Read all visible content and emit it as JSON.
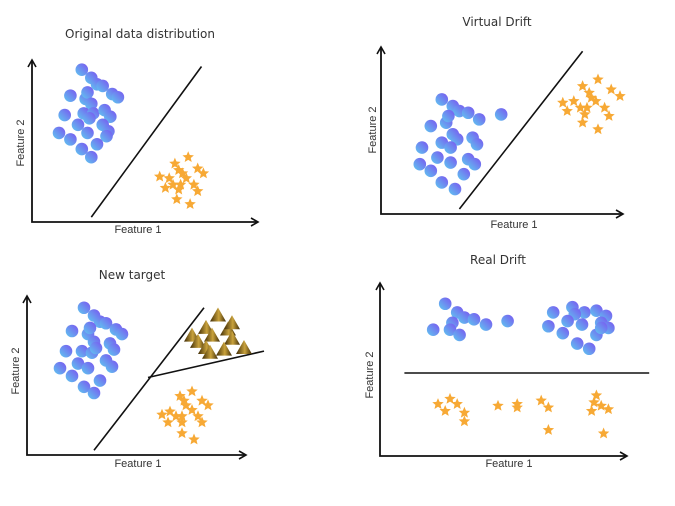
{
  "colors": {
    "circle_light": "#5fc8f0",
    "circle_dark": "#7a55f0",
    "star": "#f7a935",
    "triangle_light": "#c9a23c",
    "triangle_dark": "#3d2a06",
    "axis": "#111111"
  },
  "chart_data": [
    {
      "id": "original",
      "type": "scatter",
      "title": "Original data distribution",
      "xlabel": "Feature 1",
      "ylabel": "Feature 2",
      "xlim": [
        0,
        1
      ],
      "ylim": [
        0,
        1
      ],
      "grid": false,
      "boundaries": [
        {
          "name": "decision-boundary",
          "points": [
            [
              0.27,
              0.03
            ],
            [
              0.85,
              0.96
            ]
          ]
        }
      ],
      "series": [
        {
          "name": "class-circles",
          "marker": "circle",
          "points": [
            [
              0.22,
              0.94
            ],
            [
              0.27,
              0.89
            ],
            [
              0.3,
              0.85
            ],
            [
              0.33,
              0.84
            ],
            [
              0.38,
              0.79
            ],
            [
              0.41,
              0.77
            ],
            [
              0.16,
              0.78
            ],
            [
              0.24,
              0.76
            ],
            [
              0.25,
              0.8
            ],
            [
              0.27,
              0.73
            ],
            [
              0.23,
              0.67
            ],
            [
              0.28,
              0.67
            ],
            [
              0.26,
              0.64
            ],
            [
              0.34,
              0.69
            ],
            [
              0.37,
              0.65
            ],
            [
              0.13,
              0.66
            ],
            [
              0.2,
              0.6
            ],
            [
              0.25,
              0.55
            ],
            [
              0.33,
              0.6
            ],
            [
              0.36,
              0.56
            ],
            [
              0.1,
              0.55
            ],
            [
              0.16,
              0.51
            ],
            [
              0.35,
              0.53
            ],
            [
              0.3,
              0.48
            ],
            [
              0.22,
              0.45
            ],
            [
              0.27,
              0.4
            ]
          ]
        },
        {
          "name": "class-stars",
          "marker": "star",
          "points": [
            [
              0.78,
              0.4
            ],
            [
              0.71,
              0.36
            ],
            [
              0.83,
              0.33
            ],
            [
              0.73,
              0.32
            ],
            [
              0.75,
              0.3
            ],
            [
              0.86,
              0.3
            ],
            [
              0.63,
              0.28
            ],
            [
              0.68,
              0.27
            ],
            [
              0.77,
              0.27
            ],
            [
              0.7,
              0.23
            ],
            [
              0.74,
              0.23
            ],
            [
              0.81,
              0.23
            ],
            [
              0.66,
              0.21
            ],
            [
              0.73,
              0.2
            ],
            [
              0.83,
              0.19
            ],
            [
              0.72,
              0.14
            ],
            [
              0.79,
              0.11
            ]
          ]
        }
      ]
    },
    {
      "id": "virtual",
      "type": "scatter",
      "title": "Virtual Drift",
      "xlabel": "Feature 1",
      "ylabel": "Feature 2",
      "xlim": [
        0,
        1
      ],
      "ylim": [
        0,
        1
      ],
      "grid": false,
      "boundaries": [
        {
          "name": "decision-boundary",
          "points": [
            [
              0.27,
              0.03
            ],
            [
              0.83,
              0.98
            ]
          ]
        }
      ],
      "series": [
        {
          "name": "class-circles",
          "marker": "circle",
          "points": [
            [
              0.19,
              0.69
            ],
            [
              0.24,
              0.65
            ],
            [
              0.27,
              0.62
            ],
            [
              0.31,
              0.61
            ],
            [
              0.36,
              0.57
            ],
            [
              0.46,
              0.6
            ],
            [
              0.14,
              0.53
            ],
            [
              0.21,
              0.55
            ],
            [
              0.22,
              0.59
            ],
            [
              0.24,
              0.48
            ],
            [
              0.26,
              0.45
            ],
            [
              0.19,
              0.43
            ],
            [
              0.23,
              0.4
            ],
            [
              0.33,
              0.46
            ],
            [
              0.35,
              0.42
            ],
            [
              0.1,
              0.4
            ],
            [
              0.17,
              0.34
            ],
            [
              0.23,
              0.31
            ],
            [
              0.31,
              0.33
            ],
            [
              0.34,
              0.3
            ],
            [
              0.09,
              0.3
            ],
            [
              0.14,
              0.26
            ],
            [
              0.29,
              0.24
            ],
            [
              0.19,
              0.19
            ],
            [
              0.25,
              0.15
            ]
          ]
        },
        {
          "name": "class-stars",
          "marker": "star",
          "points": [
            [
              0.9,
              0.81
            ],
            [
              0.83,
              0.77
            ],
            [
              0.96,
              0.75
            ],
            [
              0.86,
              0.73
            ],
            [
              0.87,
              0.7
            ],
            [
              1.0,
              0.71
            ],
            [
              0.74,
              0.67
            ],
            [
              0.79,
              0.68
            ],
            [
              0.89,
              0.68
            ],
            [
              0.82,
              0.64
            ],
            [
              0.85,
              0.64
            ],
            [
              0.93,
              0.64
            ],
            [
              0.76,
              0.62
            ],
            [
              0.84,
              0.6
            ],
            [
              0.95,
              0.59
            ],
            [
              0.83,
              0.55
            ],
            [
              0.9,
              0.51
            ]
          ]
        }
      ]
    },
    {
      "id": "newtarget",
      "type": "scatter",
      "title": "New target",
      "xlabel": "Feature 1",
      "ylabel": "Feature 2",
      "xlim": [
        0,
        1
      ],
      "ylim": [
        0,
        1
      ],
      "grid": false,
      "boundaries": [
        {
          "name": "boundary-main",
          "points": [
            [
              0.27,
              0.03
            ],
            [
              0.82,
              0.95
            ]
          ]
        },
        {
          "name": "boundary-branch",
          "points": [
            [
              0.54,
              0.5
            ],
            [
              1.12,
              0.67
            ]
          ]
        }
      ],
      "series": [
        {
          "name": "class-circles",
          "marker": "circle",
          "points": [
            [
              0.22,
              0.95
            ],
            [
              0.27,
              0.9
            ],
            [
              0.3,
              0.86
            ],
            [
              0.33,
              0.85
            ],
            [
              0.38,
              0.81
            ],
            [
              0.41,
              0.78
            ],
            [
              0.16,
              0.8
            ],
            [
              0.24,
              0.78
            ],
            [
              0.25,
              0.82
            ],
            [
              0.27,
              0.73
            ],
            [
              0.21,
              0.67
            ],
            [
              0.26,
              0.66
            ],
            [
              0.28,
              0.69
            ],
            [
              0.35,
              0.72
            ],
            [
              0.37,
              0.68
            ],
            [
              0.13,
              0.67
            ],
            [
              0.19,
              0.59
            ],
            [
              0.24,
              0.56
            ],
            [
              0.33,
              0.61
            ],
            [
              0.36,
              0.57
            ],
            [
              0.1,
              0.56
            ],
            [
              0.16,
              0.51
            ],
            [
              0.3,
              0.48
            ],
            [
              0.22,
              0.44
            ],
            [
              0.27,
              0.4
            ]
          ]
        },
        {
          "name": "class-stars",
          "marker": "star",
          "points": [
            [
              0.76,
              0.41
            ],
            [
              0.7,
              0.38
            ],
            [
              0.81,
              0.35
            ],
            [
              0.72,
              0.35
            ],
            [
              0.73,
              0.32
            ],
            [
              0.84,
              0.32
            ],
            [
              0.61,
              0.26
            ],
            [
              0.65,
              0.28
            ],
            [
              0.76,
              0.29
            ],
            [
              0.68,
              0.25
            ],
            [
              0.71,
              0.25
            ],
            [
              0.79,
              0.25
            ],
            [
              0.64,
              0.21
            ],
            [
              0.71,
              0.21
            ],
            [
              0.81,
              0.21
            ],
            [
              0.71,
              0.14
            ],
            [
              0.77,
              0.1
            ]
          ]
        },
        {
          "name": "class-triangles",
          "marker": "triangle",
          "points": [
            [
              0.89,
              0.9
            ],
            [
              0.83,
              0.82
            ],
            [
              0.94,
              0.81
            ],
            [
              0.96,
              0.85
            ],
            [
              0.76,
              0.77
            ],
            [
              0.86,
              0.77
            ],
            [
              0.79,
              0.73
            ],
            [
              0.96,
              0.75
            ],
            [
              0.83,
              0.69
            ],
            [
              0.92,
              0.68
            ],
            [
              1.02,
              0.69
            ],
            [
              0.85,
              0.66
            ]
          ]
        }
      ]
    },
    {
      "id": "real",
      "type": "scatter",
      "title": "Real Drift",
      "xlabel": "Feature 1",
      "ylabel": "Feature 2",
      "xlim": [
        0,
        1
      ],
      "ylim": [
        0,
        1
      ],
      "grid": false,
      "boundaries": [
        {
          "name": "decision-boundary",
          "points": [
            [
              0.06,
              0.48
            ],
            [
              1.08,
              0.48
            ]
          ]
        }
      ],
      "series": [
        {
          "name": "class-circles",
          "marker": "circle",
          "points": [
            [
              0.23,
              0.88
            ],
            [
              0.28,
              0.83
            ],
            [
              0.31,
              0.8
            ],
            [
              0.35,
              0.79
            ],
            [
              0.4,
              0.76
            ],
            [
              0.49,
              0.78
            ],
            [
              0.26,
              0.77
            ],
            [
              0.25,
              0.73
            ],
            [
              0.29,
              0.7
            ],
            [
              0.18,
              0.73
            ],
            [
              0.68,
              0.83
            ],
            [
              0.76,
              0.86
            ],
            [
              0.81,
              0.83
            ],
            [
              0.77,
              0.82
            ],
            [
              0.86,
              0.84
            ],
            [
              0.9,
              0.81
            ],
            [
              0.74,
              0.78
            ],
            [
              0.66,
              0.75
            ],
            [
              0.8,
              0.76
            ],
            [
              0.88,
              0.77
            ],
            [
              0.72,
              0.71
            ],
            [
              0.91,
              0.74
            ],
            [
              0.86,
              0.7
            ],
            [
              0.88,
              0.74
            ],
            [
              0.78,
              0.65
            ],
            [
              0.83,
              0.62
            ]
          ]
        },
        {
          "name": "class-stars",
          "marker": "star",
          "points": [
            [
              0.25,
              0.33
            ],
            [
              0.2,
              0.3
            ],
            [
              0.28,
              0.3
            ],
            [
              0.23,
              0.26
            ],
            [
              0.31,
              0.25
            ],
            [
              0.31,
              0.2
            ],
            [
              0.45,
              0.29
            ],
            [
              0.53,
              0.3
            ],
            [
              0.53,
              0.28
            ],
            [
              0.63,
              0.32
            ],
            [
              0.66,
              0.28
            ],
            [
              0.66,
              0.15
            ],
            [
              0.86,
              0.35
            ],
            [
              0.85,
              0.31
            ],
            [
              0.88,
              0.29
            ],
            [
              0.84,
              0.26
            ],
            [
              0.91,
              0.27
            ],
            [
              0.89,
              0.13
            ]
          ]
        }
      ]
    }
  ]
}
